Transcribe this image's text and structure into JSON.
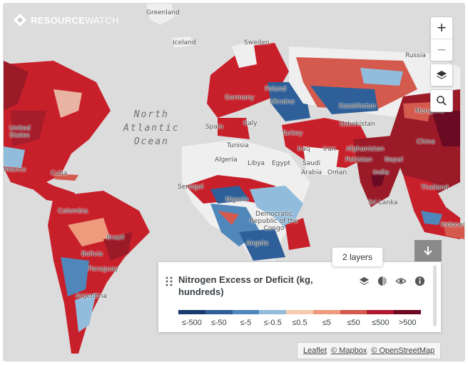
{
  "brand": {
    "name_bold": "RESOURCE",
    "name_light": "WATCH"
  },
  "map": {
    "ocean_lines": [
      "North",
      "Atlantic",
      "Ocean"
    ],
    "places": {
      "greenland": "Greenland",
      "iceland": "Iceland",
      "sweden": "Sweden",
      "russia": "Russia",
      "germany": "Germany",
      "poland": "Poland",
      "ukraine": "Ukraine",
      "kazakhstan": "Kazakhstan",
      "mongolia": "Mongolia",
      "spain": "Spain",
      "italy": "Italy",
      "turkey": "Turkey",
      "uzbekistan": "Uzbekistan",
      "china": "China",
      "tunisia": "Tunisia",
      "iraq": "Iraq",
      "iran": "Iran",
      "afghanistan": "Afghanistan",
      "pakistan": "Pakistan",
      "nepal": "Nepal",
      "algeria": "Algeria",
      "libya": "Libya",
      "egypt": "Egypt",
      "saudi": "Saudi",
      "arabia": "Arabia",
      "oman": "Oman",
      "india": "India",
      "thailand": "Thailand",
      "sri_lanka": "Sri Lanka",
      "indonesia": "Indonesia",
      "united_states": "United States",
      "mexico": "Mexico",
      "cuba": "Cuba",
      "senegal": "Senegal",
      "nigeria": "Nigeria",
      "drc": "Democratic Republic of the Congo",
      "angola": "Angola",
      "colombia": "Colombia",
      "brazil": "Brazil",
      "bolivia": "Bolivia",
      "paraguay": "Paraguay",
      "argentina": "Argentina"
    }
  },
  "controls": {
    "zoom_in": "+",
    "zoom_out": "−"
  },
  "tooltip": {
    "layers": "2 layers"
  },
  "legend": {
    "title": "Nitrogen Excess or Deficit (kg, hundreds)",
    "colors": [
      "#1a3b6e",
      "#2e5f98",
      "#4f87bb",
      "#92bcdc",
      "#f7cbb0",
      "#ee9a7d",
      "#d45a4e",
      "#b01830",
      "#6b0a23"
    ],
    "labels": [
      "≤-500",
      "≤-50",
      "≤-5",
      "≤-0.5",
      "≤0.5",
      "≤5",
      "≤50",
      "≤500",
      ">500"
    ]
  },
  "attribution": {
    "leaflet": "Leaflet",
    "mapbox": "© Mapbox",
    "osm": "© OpenStreetMap"
  }
}
